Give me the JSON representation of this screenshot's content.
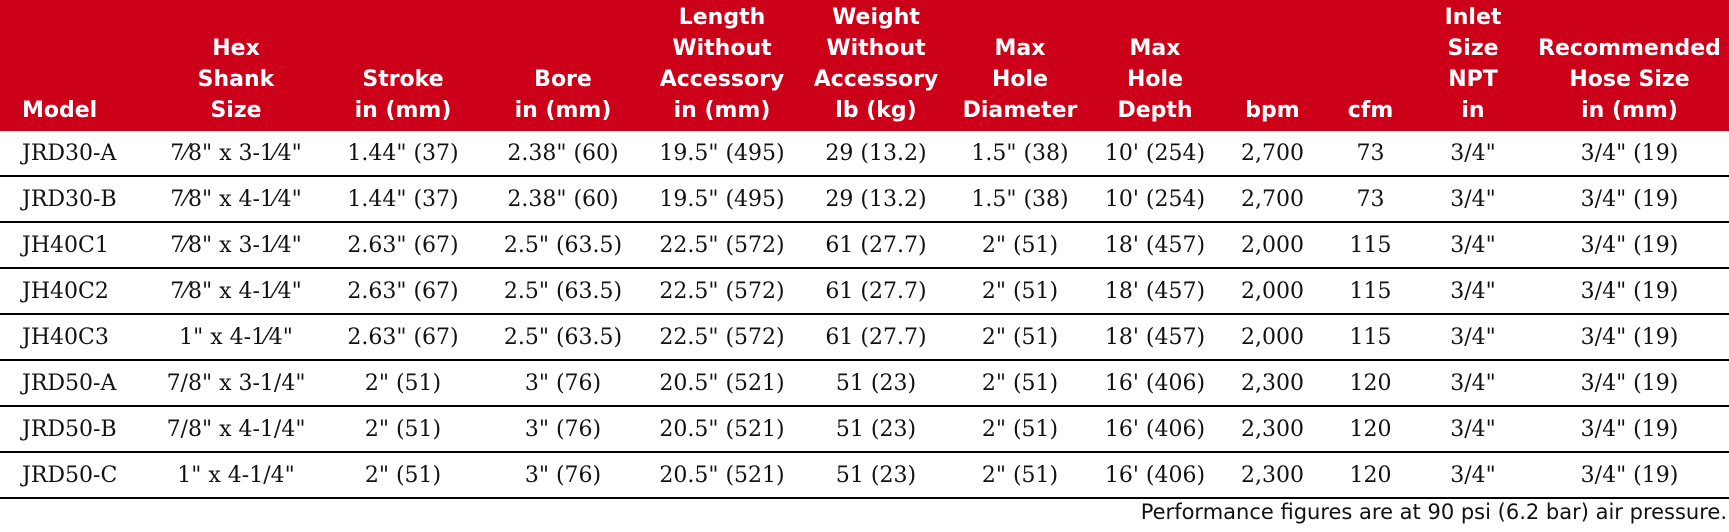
{
  "table": {
    "headers": [
      [
        "Model"
      ],
      [
        "Hex",
        "Shank",
        "Size"
      ],
      [
        "Stroke",
        "in (mm)"
      ],
      [
        "Bore",
        "in (mm)"
      ],
      [
        "Length",
        "Without",
        "Accessory",
        "in (mm)"
      ],
      [
        "Weight",
        "Without",
        "Accessory",
        "lb (kg)"
      ],
      [
        "Max",
        "Hole",
        "Diameter"
      ],
      [
        "Max",
        "Hole",
        "Depth"
      ],
      [
        "bpm"
      ],
      [
        "cfm"
      ],
      [
        "Inlet",
        "Size",
        "NPT",
        "in"
      ],
      [
        "Recommended",
        "Hose Size",
        "in (mm)"
      ]
    ],
    "rows": [
      [
        "JRD30-A",
        "7⁄8\" x 3-1⁄4\"",
        "1.44\" (37)",
        "2.38\" (60)",
        "19.5\" (495)",
        "29 (13.2)",
        "1.5\" (38)",
        "10' (254)",
        "2,700",
        "73",
        "3/4\"",
        "3/4\" (19)"
      ],
      [
        "JRD30-B",
        "7⁄8\" x 4-1⁄4\"",
        "1.44\" (37)",
        "2.38\" (60)",
        "19.5\" (495)",
        "29 (13.2)",
        "1.5\" (38)",
        "10' (254)",
        "2,700",
        "73",
        "3/4\"",
        "3/4\" (19)"
      ],
      [
        "JH40C1",
        "7⁄8\" x 3-1⁄4\"",
        "2.63\" (67)",
        "2.5\" (63.5)",
        "22.5\" (572)",
        "61 (27.7)",
        "2\" (51)",
        "18' (457)",
        "2,000",
        "115",
        "3/4\"",
        "3/4\" (19)"
      ],
      [
        "JH40C2",
        "7⁄8\" x 4-1⁄4\"",
        "2.63\" (67)",
        "2.5\" (63.5)",
        "22.5\" (572)",
        "61 (27.7)",
        "2\" (51)",
        "18' (457)",
        "2,000",
        "115",
        "3/4\"",
        "3/4\" (19)"
      ],
      [
        "JH40C3",
        "1\" x 4-1⁄4\"",
        "2.63\" (67)",
        "2.5\" (63.5)",
        "22.5\" (572)",
        "61 (27.7)",
        "2\" (51)",
        "18' (457)",
        "2,000",
        "115",
        "3/4\"",
        "3/4\" (19)"
      ],
      [
        "JRD50-A",
        "7/8\" x 3-1/4\"",
        "2\" (51)",
        "3\" (76)",
        "20.5\" (521)",
        "51 (23)",
        "2\" (51)",
        "16' (406)",
        "2,300",
        "120",
        "3/4\"",
        "3/4\" (19)"
      ],
      [
        "JRD50-B",
        "7/8\" x 4-1/4\"",
        "2\" (51)",
        "3\" (76)",
        "20.5\" (521)",
        "51 (23)",
        "2\" (51)",
        "16' (406)",
        "2,300",
        "120",
        "3/4\"",
        "3/4\" (19)"
      ],
      [
        "JRD50-C",
        "1\" x 4-1/4\"",
        "2\" (51)",
        "3\" (76)",
        "20.5\" (521)",
        "51 (23)",
        "2\" (51)",
        "16' (406)",
        "2,300",
        "120",
        "3/4\"",
        "3/4\" (19)"
      ]
    ]
  },
  "footnote": "Performance figures are at 90 psi (6.2 bar) air pressure."
}
